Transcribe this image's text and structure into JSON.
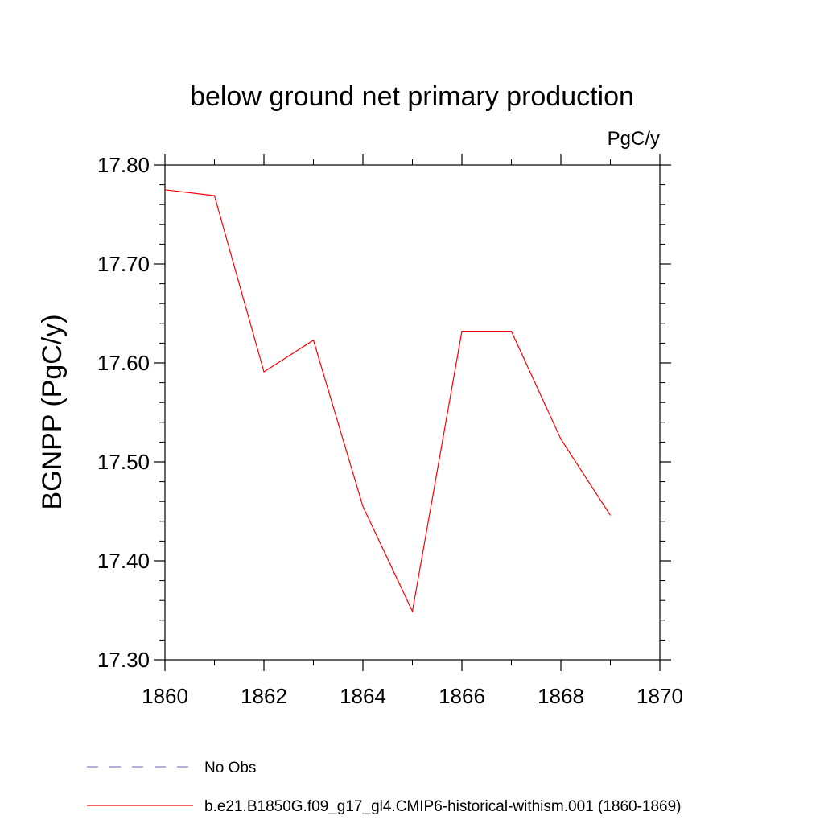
{
  "chart_data": {
    "type": "line",
    "title": "below ground net primary production",
    "units_label": "PgC/y",
    "ylabel": "BGNPP  (PgC/y)",
    "xlabel": "",
    "xlim": [
      1860,
      1870
    ],
    "ylim": [
      17.3,
      17.8
    ],
    "x_ticks": [
      1860,
      1862,
      1864,
      1866,
      1868,
      1870
    ],
    "y_ticks": [
      17.3,
      17.4,
      17.5,
      17.6,
      17.7,
      17.8
    ],
    "x_tick_labels": [
      "1860",
      "1862",
      "1864",
      "1866",
      "1868",
      "1870"
    ],
    "y_tick_labels": [
      "17.30",
      "17.40",
      "17.50",
      "17.60",
      "17.70",
      "17.80"
    ],
    "x": [
      1860,
      1861,
      1862,
      1863,
      1864,
      1865,
      1866,
      1867,
      1868,
      1869
    ],
    "series": [
      {
        "name": "b.e21.B1850G.f09_g17_gl4.CMIP6-historical-withism.001 (1860-1869)",
        "color": "#ff0000",
        "values": [
          17.775,
          17.769,
          17.591,
          17.623,
          17.455,
          17.349,
          17.632,
          17.632,
          17.523,
          17.446
        ]
      }
    ],
    "legend": [
      {
        "label": "No Obs",
        "color": "#8080c0",
        "style": "dashed"
      },
      {
        "label": "b.e21.B1850G.f09_g17_gl4.CMIP6-historical-withism.001 (1860-1869)",
        "color": "#ff0000",
        "style": "solid"
      }
    ],
    "legend_position": "bottom",
    "grid": false
  }
}
